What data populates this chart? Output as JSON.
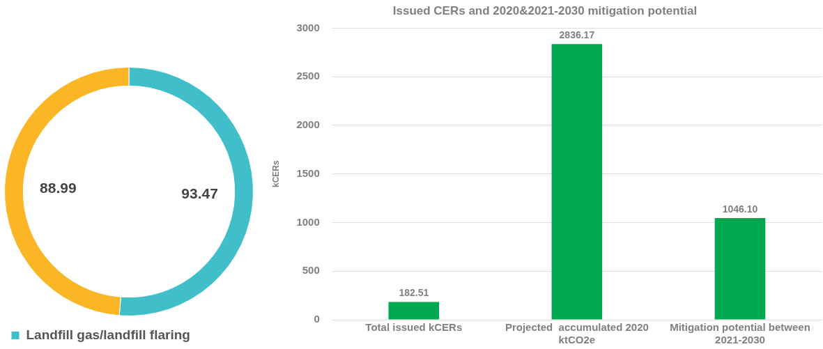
{
  "chart_data": [
    {
      "type": "donut",
      "categories": [
        "Landfill gas/landfill flaring",
        null
      ],
      "values": [
        93.47,
        88.99
      ],
      "colors": [
        "#40bfca",
        "#fbb625"
      ],
      "data_labels": true,
      "legend": "bottom"
    },
    {
      "type": "bar",
      "title": "Issued CERs and 2020&2021-2030 mitigation potential",
      "ylabel": "kCERs",
      "categories": [
        "Total issued kCERs",
        "Projected  accumulated 2020 ktCO2e",
        "Mitigation potential between 2021-2030"
      ],
      "values": [
        182.51,
        2836.17,
        1046.1
      ],
      "value_labels": [
        "182.51",
        "2836.17",
        "1046.10"
      ],
      "color": "#00a650",
      "ylim": [
        0,
        3000
      ],
      "yticks": [
        0,
        500,
        1000,
        1500,
        2000,
        2500,
        3000
      ],
      "grid": "y",
      "legend": false
    }
  ]
}
